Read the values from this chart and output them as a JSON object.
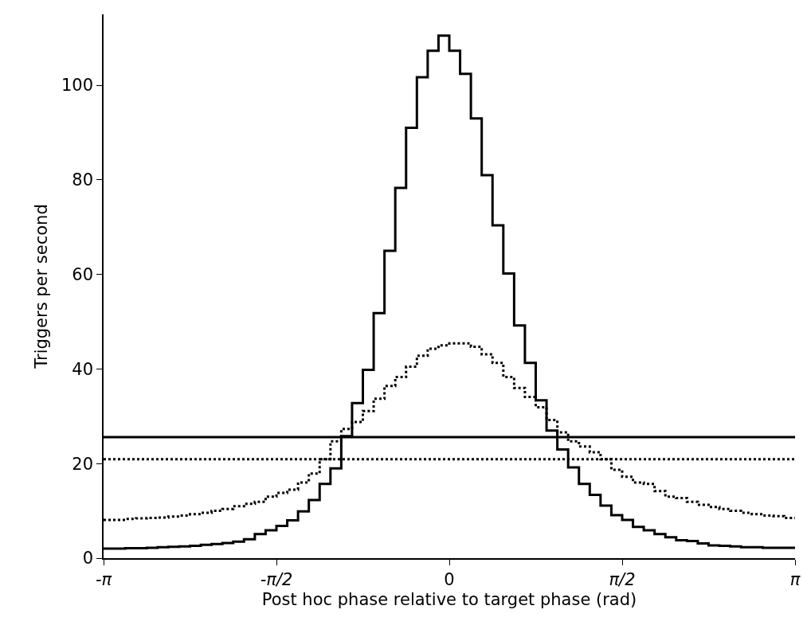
{
  "chart_data": {
    "type": "histogram",
    "xlabel": "Post hoc phase relative to target phase (rad)",
    "ylabel": "Triggers per second",
    "bins": [
      -3.1416,
      -3.0434,
      -2.9452,
      -2.8471,
      -2.7489,
      -2.6507,
      -2.5525,
      -2.4544,
      -2.3562,
      -2.258,
      -2.1598,
      -2.0617,
      -1.9635,
      -1.8653,
      -1.7671,
      -1.669,
      -1.5708,
      -1.4726,
      -1.3744,
      -1.2763,
      -1.1781,
      -1.0799,
      -0.9817,
      -0.8836,
      -0.7854,
      -0.6872,
      -0.589,
      -0.4909,
      -0.3927,
      -0.2945,
      -0.1963,
      -0.0982,
      0,
      0.0982,
      0.1963,
      0.2945,
      0.3927,
      0.4909,
      0.589,
      0.6872,
      0.7854,
      0.8836,
      0.9817,
      1.0799,
      1.1781,
      1.2763,
      1.3744,
      1.4726,
      1.5708,
      1.669,
      1.7671,
      1.8653,
      1.9635,
      2.0617,
      2.1598,
      2.258,
      2.3562,
      2.4544,
      2.5525,
      2.6507,
      2.7489,
      2.8471,
      2.9452,
      3.0434,
      3.1416
    ],
    "series": [
      {
        "color": "#000000",
        "line_style": "solid",
        "values": [
          2.0,
          2.0,
          2.1,
          2.1,
          2.2,
          2.3,
          2.4,
          2.5,
          2.6,
          2.8,
          3.0,
          3.2,
          3.5,
          4.0,
          5.1,
          5.9,
          6.8,
          8.0,
          9.9,
          12.3,
          15.7,
          19.0,
          25.8,
          32.8,
          39.8,
          51.8,
          65.0,
          78.3,
          91.0,
          101.7,
          107.3,
          110.5,
          107.3,
          102.4,
          93.0,
          81.0,
          70.4,
          60.2,
          49.2,
          41.3,
          33.4,
          27.0,
          23.0,
          19.2,
          15.7,
          13.4,
          11.1,
          9.1,
          8.1,
          6.6,
          5.9,
          5.1,
          4.4,
          3.8,
          3.6,
          3.1,
          2.7,
          2.6,
          2.5,
          2.3,
          2.3,
          2.2,
          2.2,
          2.2
        ]
      },
      {
        "color": "#000000",
        "line_style": "dotted",
        "values": [
          8.1,
          8.1,
          8.3,
          8.4,
          8.5,
          8.6,
          8.8,
          9.0,
          9.3,
          9.6,
          10.0,
          10.4,
          11.0,
          11.5,
          11.9,
          13.0,
          13.8,
          14.5,
          16.0,
          17.9,
          20.9,
          24.7,
          27.3,
          28.8,
          31.1,
          33.7,
          36.4,
          38.3,
          40.5,
          42.8,
          44.3,
          45.0,
          45.4,
          45.4,
          44.7,
          43.1,
          41.3,
          38.3,
          36.0,
          34.1,
          31.9,
          29.2,
          26.6,
          24.7,
          23.6,
          22.4,
          20.9,
          18.7,
          17.2,
          16.0,
          15.7,
          14.2,
          13.0,
          12.7,
          11.9,
          11.3,
          10.8,
          10.4,
          10.0,
          9.6,
          9.3,
          9.0,
          8.9,
          8.5
        ]
      }
    ],
    "ref_lines": [
      {
        "axis": "y",
        "value": 25.6,
        "color": "#000000",
        "line_style": "solid"
      },
      {
        "axis": "y",
        "value": 20.9,
        "color": "#000000",
        "line_style": "dotted"
      }
    ],
    "xlim": [
      -3.1416,
      3.1416
    ],
    "xticks": [
      {
        "value": -3.1416,
        "label": "-π"
      },
      {
        "value": -1.5708,
        "label": "-π/2"
      },
      0,
      {
        "value": 1.5708,
        "label": "π/2"
      },
      {
        "value": 3.1416,
        "label": "π"
      }
    ],
    "ylim": [
      0,
      115
    ],
    "yticks": [
      0,
      20,
      40,
      60,
      80,
      100
    ]
  }
}
